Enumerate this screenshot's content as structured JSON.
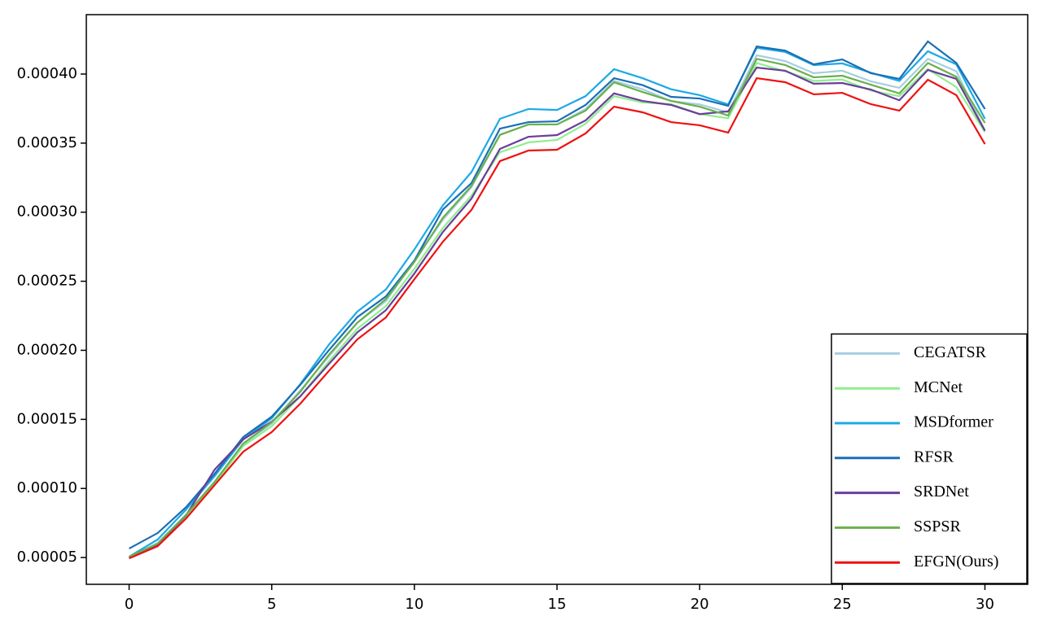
{
  "chart_data": {
    "type": "line",
    "x": [
      0,
      1,
      2,
      3,
      4,
      5,
      6,
      7,
      8,
      9,
      10,
      11,
      12,
      13,
      14,
      15,
      16,
      17,
      18,
      19,
      20,
      21,
      22,
      23,
      24,
      25,
      26,
      27,
      28,
      29,
      30
    ],
    "xlim": [
      -1.5,
      31.5
    ],
    "xticks": [
      0,
      5,
      10,
      15,
      20,
      25,
      30
    ],
    "ylim": [
      3.06e-05,
      0.000443
    ],
    "yticks": [
      {
        "value": 5e-05,
        "label": "0.00005"
      },
      {
        "value": 0.0001,
        "label": "0.00010"
      },
      {
        "value": 0.00015,
        "label": "0.00015"
      },
      {
        "value": 0.0002,
        "label": "0.00020"
      },
      {
        "value": 0.00025,
        "label": "0.00025"
      },
      {
        "value": 0.0003,
        "label": "0.00030"
      },
      {
        "value": 0.00035,
        "label": "0.00035"
      },
      {
        "value": 0.0004,
        "label": "0.00040"
      }
    ],
    "grid": false,
    "legend": "lower right",
    "series": [
      {
        "name": "CEGATSR",
        "color": "#a6cee3",
        "values": [
          5e-05,
          6.06e-05,
          8.1e-05,
          0.000105,
          0.000132,
          0.000147,
          0.000171,
          0.0001955,
          0.00022,
          0.0002356,
          0.000265,
          0.0002945,
          0.000318,
          0.000356,
          0.0003635,
          0.0003635,
          0.0003747,
          0.000395,
          0.000389,
          0.0003805,
          0.000378,
          0.0003723,
          0.0004136,
          0.0004094,
          0.0004006,
          0.0004024,
          0.0003947,
          0.00039,
          0.000411,
          0.000402,
          0.000359
        ]
      },
      {
        "name": "MCNet",
        "color": "#90ee90",
        "values": [
          5.06e-05,
          6e-05,
          8e-05,
          0.000103,
          0.0001307,
          0.000145,
          0.0001667,
          0.000192,
          0.0002156,
          0.000232,
          0.000259,
          0.0002886,
          0.000312,
          0.0003434,
          0.0003505,
          0.0003523,
          0.000364,
          0.000384,
          0.0003794,
          0.0003782,
          0.000371,
          0.000368,
          0.000408,
          0.000402,
          0.000395,
          0.000396,
          0.000388,
          0.000384,
          0.0004035,
          0.0003905,
          0.000358
        ]
      },
      {
        "name": "MSDformer",
        "color": "#1ca9e6",
        "values": [
          5.06e-05,
          6.3e-05,
          8.48e-05,
          0.000109,
          0.0001355,
          0.0001508,
          0.0001755,
          0.000204,
          0.000228,
          0.000244,
          0.000273,
          0.000305,
          0.000329,
          0.0003676,
          0.0003747,
          0.000374,
          0.000384,
          0.0004035,
          0.000397,
          0.000389,
          0.0003847,
          0.000378,
          0.000419,
          0.000416,
          0.0004065,
          0.0004077,
          0.000401,
          0.000395,
          0.0004165,
          0.000407,
          0.0003676
        ]
      },
      {
        "name": "RFSR",
        "color": "#1a6fb5",
        "values": [
          5.65e-05,
          6.77e-05,
          8.65e-05,
          0.0001107,
          0.0001372,
          0.000152,
          0.000175,
          0.0002,
          0.000224,
          0.000239,
          0.000265,
          0.000302,
          0.000321,
          0.0003605,
          0.0003652,
          0.0003658,
          0.0003776,
          0.000397,
          0.000392,
          0.0003835,
          0.0003823,
          0.000377,
          0.00042,
          0.000417,
          0.000407,
          0.0004106,
          0.0004006,
          0.0003965,
          0.0004236,
          0.000408,
          0.0003747
        ]
      },
      {
        "name": "SRDNet",
        "color": "#6a3d9a",
        "values": [
          5e-05,
          5.94e-05,
          8.06e-05,
          0.0001137,
          0.0001355,
          0.0001484,
          0.0001667,
          0.00019,
          0.000213,
          0.000229,
          0.0002556,
          0.0002857,
          0.0003098,
          0.0003458,
          0.0003546,
          0.0003558,
          0.0003664,
          0.000386,
          0.0003805,
          0.0003776,
          0.000371,
          0.000373,
          0.0004047,
          0.0004024,
          0.000393,
          0.0003935,
          0.0003888,
          0.000381,
          0.000403,
          0.0003965,
          0.000359
        ]
      },
      {
        "name": "SSPSR",
        "color": "#6ab04c",
        "values": [
          5.06e-05,
          6e-05,
          8.1e-05,
          0.0001048,
          0.0001325,
          0.000148,
          0.00017,
          0.0001967,
          0.00022,
          0.000237,
          0.000264,
          0.000296,
          0.000319,
          0.000356,
          0.0003635,
          0.0003635,
          0.0003735,
          0.000394,
          0.000387,
          0.0003805,
          0.0003764,
          0.00037,
          0.000411,
          0.0004065,
          0.0003976,
          0.0003988,
          0.0003923,
          0.000386,
          0.000408,
          0.000398,
          0.0003646
        ]
      },
      {
        "name": "EFGN(Ours)",
        "color": "#ee1111",
        "values": [
          4.94e-05,
          5.82e-05,
          7.83e-05,
          0.0001025,
          0.0001266,
          0.0001408,
          0.0001614,
          0.000185,
          0.0002079,
          0.0002238,
          0.0002515,
          0.0002786,
          0.0003016,
          0.000337,
          0.0003446,
          0.0003452,
          0.000357,
          0.0003764,
          0.0003723,
          0.0003652,
          0.0003629,
          0.0003576,
          0.000397,
          0.0003941,
          0.0003853,
          0.0003864,
          0.0003782,
          0.0003735,
          0.0003959,
          0.0003847,
          0.0003493
        ]
      }
    ]
  }
}
